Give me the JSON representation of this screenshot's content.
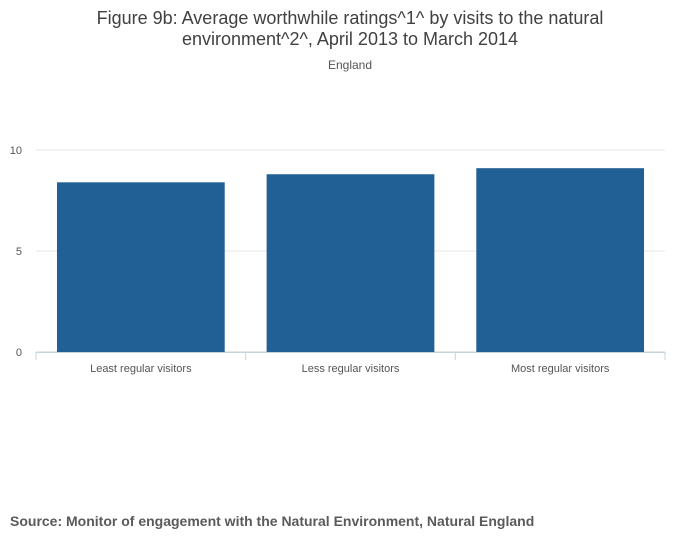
{
  "chart_data": {
    "type": "bar",
    "title_line1": "Figure 9b: Average worthwhile ratings^1^ by visits to the natural",
    "title_line2": "environment^2^, April 2013 to March 2014",
    "subtitle": "England",
    "categories": [
      "Least regular visitors",
      "Less regular visitors",
      "Most regular visitors"
    ],
    "values": [
      8.4,
      8.8,
      9.1
    ],
    "ylim": [
      0,
      10
    ],
    "yticks": [
      0,
      5,
      10
    ],
    "grid": true,
    "bar_color": "#206095",
    "source": "Source: Monitor of engagement with the Natural Environment, Natural England"
  }
}
